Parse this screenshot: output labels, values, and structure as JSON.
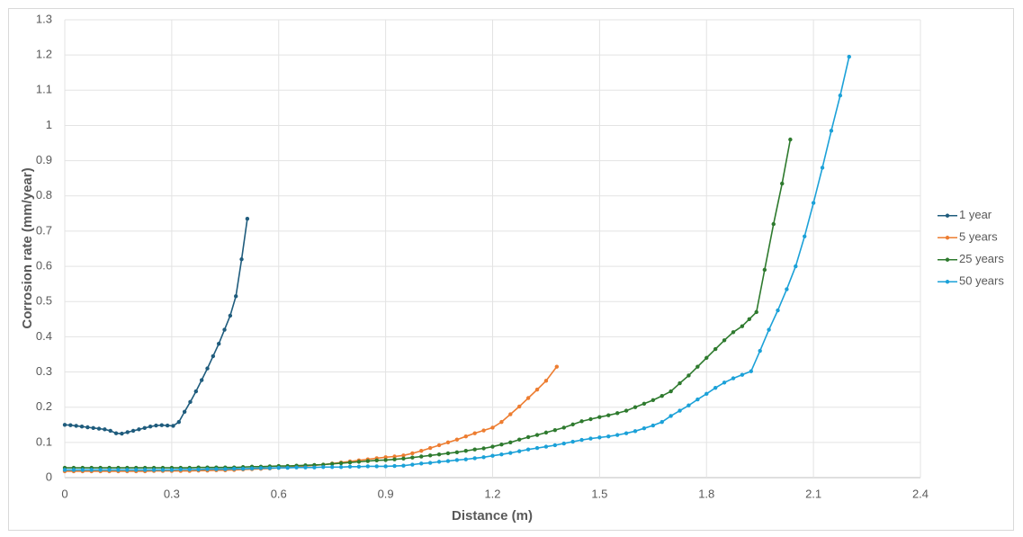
{
  "chart_data": {
    "type": "line",
    "x_label": "Distance (m)",
    "y_label": "Corrosion rate (mm/year)",
    "xlim": [
      0,
      2.4
    ],
    "xticks": [
      0,
      0.3,
      0.6,
      0.9,
      1.2,
      1.5,
      1.8,
      2.1,
      2.4
    ],
    "ylim": [
      0,
      1.3
    ],
    "yticks": [
      0,
      0.1,
      0.2,
      0.3,
      0.4,
      0.5,
      0.6,
      0.7,
      0.8,
      0.9,
      1,
      1.1,
      1.2,
      1.3
    ],
    "grid": true,
    "legend": "right",
    "series": [
      {
        "name": "1 year",
        "color": "#1f5c7d",
        "x": [
          0,
          0.016,
          0.032,
          0.048,
          0.064,
          0.08,
          0.096,
          0.112,
          0.128,
          0.144,
          0.16,
          0.176,
          0.192,
          0.208,
          0.224,
          0.24,
          0.256,
          0.272,
          0.288,
          0.304,
          0.32,
          0.336,
          0.352,
          0.368,
          0.384,
          0.4,
          0.416,
          0.432,
          0.448,
          0.464,
          0.48,
          0.496,
          0.512
        ],
        "values": [
          0.15,
          0.149,
          0.147,
          0.145,
          0.143,
          0.141,
          0.139,
          0.137,
          0.133,
          0.126,
          0.125,
          0.129,
          0.133,
          0.137,
          0.141,
          0.145,
          0.148,
          0.149,
          0.148,
          0.147,
          0.158,
          0.187,
          0.215,
          0.245,
          0.277,
          0.31,
          0.345,
          0.38,
          0.42,
          0.46,
          0.515,
          0.62,
          0.735
        ]
      },
      {
        "name": "5 years",
        "color": "#ed7d31",
        "x": [
          0,
          0.025,
          0.05,
          0.075,
          0.1,
          0.125,
          0.15,
          0.175,
          0.2,
          0.225,
          0.25,
          0.275,
          0.3,
          0.325,
          0.35,
          0.375,
          0.4,
          0.425,
          0.45,
          0.475,
          0.5,
          0.525,
          0.55,
          0.575,
          0.6,
          0.625,
          0.65,
          0.675,
          0.7,
          0.725,
          0.75,
          0.775,
          0.8,
          0.825,
          0.85,
          0.875,
          0.9,
          0.925,
          0.95,
          0.975,
          1,
          1.025,
          1.05,
          1.075,
          1.1,
          1.125,
          1.15,
          1.175,
          1.2,
          1.225,
          1.25,
          1.275,
          1.3,
          1.325,
          1.35,
          1.38
        ],
        "values": [
          0.018,
          0.018,
          0.018,
          0.018,
          0.018,
          0.018,
          0.018,
          0.018,
          0.018,
          0.018,
          0.019,
          0.019,
          0.019,
          0.019,
          0.019,
          0.02,
          0.02,
          0.021,
          0.021,
          0.022,
          0.023,
          0.024,
          0.025,
          0.026,
          0.028,
          0.029,
          0.031,
          0.033,
          0.035,
          0.037,
          0.04,
          0.043,
          0.046,
          0.049,
          0.052,
          0.055,
          0.058,
          0.06,
          0.063,
          0.069,
          0.076,
          0.084,
          0.092,
          0.1,
          0.108,
          0.117,
          0.126,
          0.134,
          0.142,
          0.158,
          0.18,
          0.202,
          0.226,
          0.25,
          0.275,
          0.315
        ]
      },
      {
        "name": "25 years",
        "color": "#2e7a2e",
        "x": [
          0,
          0.025,
          0.05,
          0.075,
          0.1,
          0.125,
          0.15,
          0.175,
          0.2,
          0.225,
          0.25,
          0.275,
          0.3,
          0.325,
          0.35,
          0.375,
          0.4,
          0.425,
          0.45,
          0.475,
          0.5,
          0.525,
          0.55,
          0.575,
          0.6,
          0.625,
          0.65,
          0.675,
          0.7,
          0.725,
          0.75,
          0.775,
          0.8,
          0.825,
          0.85,
          0.875,
          0.9,
          0.925,
          0.95,
          0.975,
          1,
          1.025,
          1.05,
          1.075,
          1.1,
          1.125,
          1.15,
          1.175,
          1.2,
          1.225,
          1.25,
          1.275,
          1.3,
          1.325,
          1.35,
          1.375,
          1.4,
          1.425,
          1.45,
          1.475,
          1.5,
          1.525,
          1.55,
          1.575,
          1.6,
          1.625,
          1.65,
          1.675,
          1.7,
          1.725,
          1.75,
          1.775,
          1.8,
          1.825,
          1.85,
          1.875,
          1.9,
          1.92,
          1.94,
          1.963,
          1.988,
          2.012,
          2.035
        ],
        "values": [
          0.028,
          0.028,
          0.028,
          0.028,
          0.028,
          0.028,
          0.028,
          0.028,
          0.028,
          0.028,
          0.028,
          0.028,
          0.028,
          0.028,
          0.028,
          0.029,
          0.029,
          0.029,
          0.029,
          0.029,
          0.03,
          0.031,
          0.031,
          0.032,
          0.033,
          0.033,
          0.034,
          0.035,
          0.036,
          0.037,
          0.039,
          0.041,
          0.043,
          0.045,
          0.047,
          0.049,
          0.05,
          0.052,
          0.054,
          0.057,
          0.06,
          0.063,
          0.066,
          0.069,
          0.072,
          0.076,
          0.08,
          0.083,
          0.088,
          0.094,
          0.1,
          0.108,
          0.115,
          0.121,
          0.128,
          0.135,
          0.142,
          0.151,
          0.16,
          0.166,
          0.172,
          0.177,
          0.183,
          0.19,
          0.2,
          0.21,
          0.22,
          0.232,
          0.245,
          0.268,
          0.29,
          0.315,
          0.34,
          0.365,
          0.39,
          0.413,
          0.43,
          0.45,
          0.47,
          0.59,
          0.72,
          0.835,
          0.96
        ]
      },
      {
        "name": "50 years",
        "color": "#1ba1d8",
        "x": [
          0,
          0.025,
          0.05,
          0.075,
          0.1,
          0.125,
          0.15,
          0.175,
          0.2,
          0.225,
          0.25,
          0.275,
          0.3,
          0.325,
          0.35,
          0.375,
          0.4,
          0.425,
          0.45,
          0.475,
          0.5,
          0.525,
          0.55,
          0.575,
          0.6,
          0.625,
          0.65,
          0.675,
          0.7,
          0.725,
          0.75,
          0.775,
          0.8,
          0.825,
          0.85,
          0.875,
          0.9,
          0.925,
          0.95,
          0.975,
          1,
          1.025,
          1.05,
          1.075,
          1.1,
          1.125,
          1.15,
          1.175,
          1.2,
          1.225,
          1.25,
          1.275,
          1.3,
          1.325,
          1.35,
          1.375,
          1.4,
          1.425,
          1.45,
          1.475,
          1.5,
          1.525,
          1.55,
          1.575,
          1.6,
          1.625,
          1.65,
          1.675,
          1.7,
          1.725,
          1.75,
          1.775,
          1.8,
          1.825,
          1.85,
          1.875,
          1.9,
          1.925,
          1.95,
          1.975,
          2,
          2.025,
          2.05,
          2.075,
          2.1,
          2.125,
          2.15,
          2.175,
          2.2
        ],
        "values": [
          0.022,
          0.022,
          0.022,
          0.022,
          0.022,
          0.022,
          0.022,
          0.022,
          0.022,
          0.022,
          0.022,
          0.022,
          0.022,
          0.023,
          0.023,
          0.023,
          0.024,
          0.024,
          0.024,
          0.025,
          0.025,
          0.026,
          0.027,
          0.027,
          0.028,
          0.028,
          0.029,
          0.029,
          0.029,
          0.03,
          0.03,
          0.03,
          0.031,
          0.031,
          0.032,
          0.032,
          0.032,
          0.033,
          0.034,
          0.037,
          0.04,
          0.042,
          0.045,
          0.047,
          0.05,
          0.052,
          0.055,
          0.058,
          0.062,
          0.066,
          0.07,
          0.075,
          0.08,
          0.084,
          0.088,
          0.092,
          0.097,
          0.102,
          0.107,
          0.111,
          0.114,
          0.117,
          0.121,
          0.126,
          0.132,
          0.14,
          0.148,
          0.158,
          0.175,
          0.19,
          0.205,
          0.222,
          0.238,
          0.255,
          0.27,
          0.282,
          0.292,
          0.302,
          0.36,
          0.42,
          0.475,
          0.535,
          0.6,
          0.685,
          0.78,
          0.88,
          0.985,
          1.085,
          1.195
        ]
      }
    ]
  }
}
